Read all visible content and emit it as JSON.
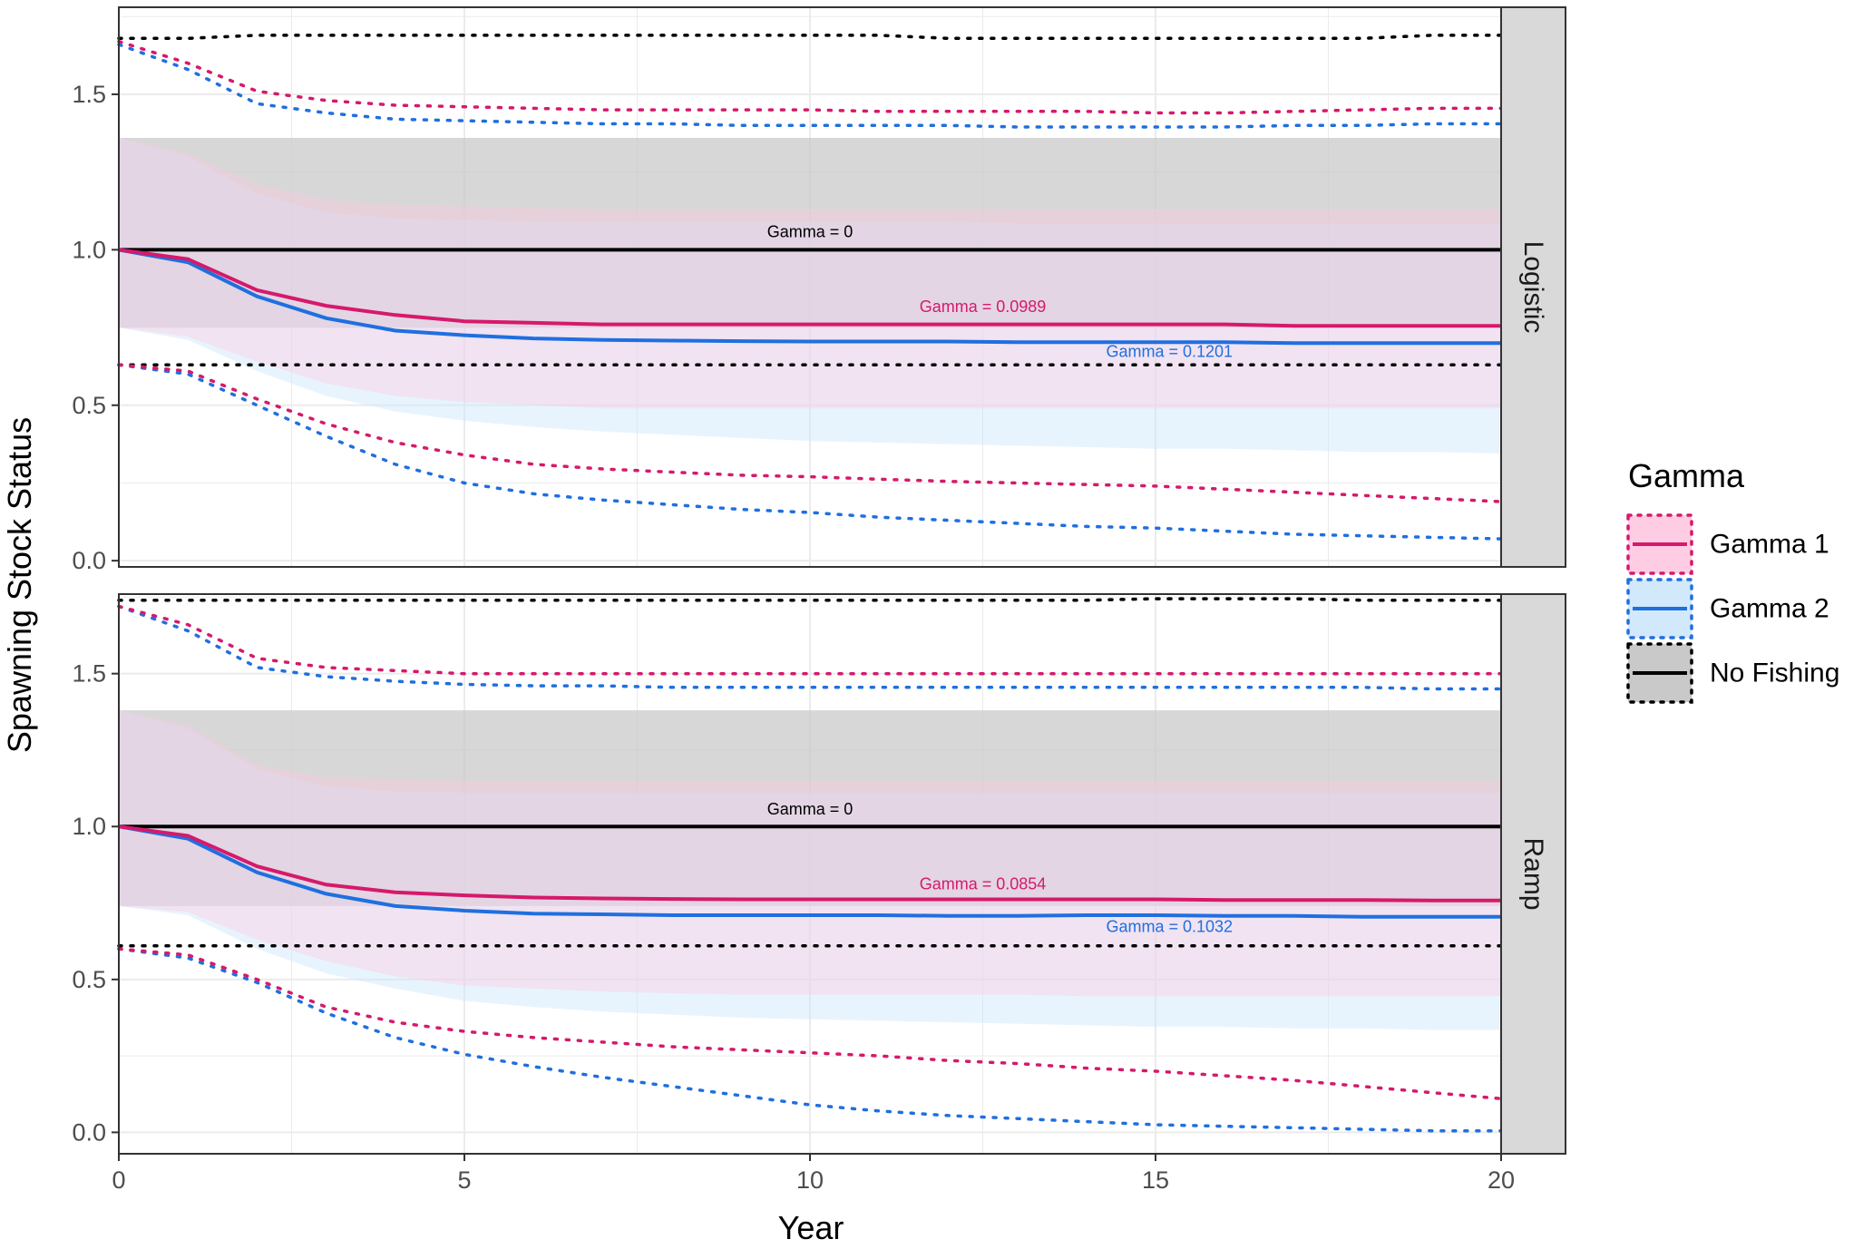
{
  "chart_data": {
    "type": "line",
    "title": "",
    "xlabel": "Year",
    "ylabel": "Spawning Stock Status",
    "xlim": [
      0,
      20
    ],
    "x_ticks": [
      0,
      5,
      10,
      15,
      20
    ],
    "y_ticks": [
      0.0,
      0.5,
      1.0,
      1.5
    ],
    "y_tick_labels": [
      "0.0",
      "0.5",
      "1.0",
      "1.5"
    ],
    "x_tick_labels": [
      "0",
      "5",
      "10",
      "15",
      "20"
    ],
    "grid": true,
    "x": [
      0,
      1,
      2,
      3,
      4,
      5,
      6,
      7,
      8,
      9,
      10,
      11,
      12,
      13,
      14,
      15,
      16,
      17,
      18,
      19,
      20
    ],
    "legend": {
      "title": "Gamma",
      "position": "right",
      "entries": [
        {
          "key": "g1",
          "label": "Gamma 1",
          "color": "#d6196b",
          "fill": "#ffc8e0"
        },
        {
          "key": "g2",
          "label": "Gamma 2",
          "color": "#1f6fe0",
          "fill": "#cde6fb"
        },
        {
          "key": "nf",
          "label": "No Fishing",
          "color": "#000000",
          "fill": "#c9c9c9"
        }
      ]
    },
    "panels": [
      {
        "strip": "Logistic",
        "ylim": [
          -0.02,
          1.78
        ],
        "series": [
          {
            "key": "nf",
            "name": "No Fishing",
            "median": [
              1.0,
              1.0,
              1.0,
              1.0,
              1.0,
              1.0,
              1.0,
              1.0,
              1.0,
              1.0,
              1.0,
              1.0,
              1.0,
              1.0,
              1.0,
              1.0,
              1.0,
              1.0,
              1.0,
              1.0,
              1.0
            ],
            "band_lo": [
              0.75,
              0.75,
              0.75,
              0.75,
              0.75,
              0.75,
              0.75,
              0.75,
              0.75,
              0.75,
              0.75,
              0.75,
              0.75,
              0.75,
              0.75,
              0.75,
              0.75,
              0.75,
              0.75,
              0.75,
              0.75
            ],
            "band_hi": [
              1.36,
              1.36,
              1.36,
              1.36,
              1.36,
              1.36,
              1.36,
              1.36,
              1.36,
              1.36,
              1.36,
              1.36,
              1.36,
              1.36,
              1.36,
              1.36,
              1.36,
              1.36,
              1.36,
              1.36,
              1.36
            ],
            "outer_lo": [
              0.63,
              0.63,
              0.63,
              0.63,
              0.63,
              0.63,
              0.63,
              0.63,
              0.63,
              0.63,
              0.63,
              0.63,
              0.63,
              0.63,
              0.63,
              0.63,
              0.63,
              0.63,
              0.63,
              0.63,
              0.63
            ],
            "outer_hi": [
              1.68,
              1.68,
              1.69,
              1.69,
              1.69,
              1.69,
              1.69,
              1.69,
              1.69,
              1.69,
              1.69,
              1.69,
              1.68,
              1.68,
              1.68,
              1.68,
              1.68,
              1.68,
              1.68,
              1.69,
              1.69
            ]
          },
          {
            "key": "g1",
            "name": "Gamma 1",
            "median": [
              1.0,
              0.97,
              0.87,
              0.82,
              0.79,
              0.77,
              0.765,
              0.76,
              0.76,
              0.76,
              0.76,
              0.76,
              0.76,
              0.76,
              0.76,
              0.76,
              0.76,
              0.755,
              0.755,
              0.755,
              0.755
            ],
            "band_lo": [
              0.75,
              0.72,
              0.64,
              0.57,
              0.53,
              0.51,
              0.5,
              0.49,
              0.49,
              0.49,
              0.49,
              0.49,
              0.49,
              0.49,
              0.49,
              0.49,
              0.49,
              0.49,
              0.49,
              0.49,
              0.49
            ],
            "band_hi": [
              1.36,
              1.31,
              1.21,
              1.16,
              1.145,
              1.14,
              1.135,
              1.13,
              1.13,
              1.13,
              1.13,
              1.13,
              1.13,
              1.13,
              1.13,
              1.13,
              1.13,
              1.13,
              1.13,
              1.13,
              1.13
            ],
            "outer_lo": [
              0.63,
              0.61,
              0.52,
              0.44,
              0.38,
              0.34,
              0.31,
              0.295,
              0.285,
              0.275,
              0.27,
              0.262,
              0.255,
              0.25,
              0.245,
              0.24,
              0.23,
              0.22,
              0.21,
              0.2,
              0.19
            ],
            "outer_hi": [
              1.67,
              1.6,
              1.51,
              1.48,
              1.465,
              1.46,
              1.455,
              1.45,
              1.45,
              1.45,
              1.45,
              1.445,
              1.445,
              1.445,
              1.445,
              1.44,
              1.44,
              1.445,
              1.45,
              1.455,
              1.455
            ]
          },
          {
            "key": "g2",
            "name": "Gamma 2",
            "median": [
              1.0,
              0.96,
              0.85,
              0.78,
              0.74,
              0.725,
              0.715,
              0.71,
              0.708,
              0.706,
              0.705,
              0.705,
              0.705,
              0.703,
              0.703,
              0.703,
              0.703,
              0.7,
              0.7,
              0.7,
              0.7
            ],
            "band_lo": [
              0.75,
              0.71,
              0.61,
              0.53,
              0.48,
              0.45,
              0.43,
              0.415,
              0.405,
              0.395,
              0.385,
              0.38,
              0.375,
              0.37,
              0.365,
              0.36,
              0.36,
              0.355,
              0.35,
              0.35,
              0.345
            ],
            "band_hi": [
              1.36,
              1.3,
              1.18,
              1.12,
              1.1,
              1.095,
              1.09,
              1.09,
              1.09,
              1.09,
              1.09,
              1.09,
              1.09,
              1.085,
              1.085,
              1.085,
              1.085,
              1.085,
              1.085,
              1.085,
              1.085
            ],
            "outer_lo": [
              0.63,
              0.6,
              0.5,
              0.4,
              0.31,
              0.25,
              0.215,
              0.195,
              0.18,
              0.165,
              0.155,
              0.14,
              0.13,
              0.12,
              0.11,
              0.105,
              0.095,
              0.085,
              0.08,
              0.075,
              0.07
            ],
            "outer_hi": [
              1.66,
              1.58,
              1.47,
              1.44,
              1.42,
              1.415,
              1.41,
              1.405,
              1.405,
              1.4,
              1.4,
              1.4,
              1.4,
              1.395,
              1.395,
              1.395,
              1.395,
              1.4,
              1.4,
              1.405,
              1.405
            ]
          }
        ],
        "annotations": [
          {
            "key": "nf",
            "text": "Gamma = 0",
            "x": 10.0,
            "y": 1.04
          },
          {
            "key": "g1",
            "text": "Gamma = 0.0989",
            "x": 12.5,
            "y": 0.8
          },
          {
            "key": "g2",
            "text": "Gamma = 0.1201",
            "x": 15.2,
            "y": 0.655
          }
        ]
      },
      {
        "strip": "Ramp",
        "ylim": [
          -0.07,
          1.76
        ],
        "series": [
          {
            "key": "nf",
            "name": "No Fishing",
            "median": [
              1.0,
              1.0,
              1.0,
              1.0,
              1.0,
              1.0,
              1.0,
              1.0,
              1.0,
              1.0,
              1.0,
              1.0,
              1.0,
              1.0,
              1.0,
              1.0,
              1.0,
              1.0,
              1.0,
              1.0,
              1.0
            ],
            "band_lo": [
              0.74,
              0.74,
              0.74,
              0.74,
              0.74,
              0.74,
              0.74,
              0.74,
              0.74,
              0.74,
              0.74,
              0.74,
              0.74,
              0.74,
              0.74,
              0.74,
              0.74,
              0.74,
              0.74,
              0.74,
              0.74
            ],
            "band_hi": [
              1.38,
              1.38,
              1.38,
              1.38,
              1.38,
              1.38,
              1.38,
              1.38,
              1.38,
              1.38,
              1.38,
              1.38,
              1.38,
              1.38,
              1.38,
              1.38,
              1.38,
              1.38,
              1.38,
              1.38,
              1.38
            ],
            "outer_lo": [
              0.61,
              0.61,
              0.61,
              0.61,
              0.61,
              0.61,
              0.61,
              0.61,
              0.61,
              0.61,
              0.61,
              0.61,
              0.61,
              0.61,
              0.61,
              0.61,
              0.61,
              0.61,
              0.61,
              0.61,
              0.61
            ],
            "outer_hi": [
              1.74,
              1.74,
              1.74,
              1.74,
              1.74,
              1.74,
              1.74,
              1.74,
              1.74,
              1.74,
              1.74,
              1.74,
              1.74,
              1.74,
              1.74,
              1.745,
              1.745,
              1.745,
              1.74,
              1.74,
              1.74
            ]
          },
          {
            "key": "g1",
            "name": "Gamma 1",
            "median": [
              1.0,
              0.97,
              0.87,
              0.81,
              0.785,
              0.775,
              0.768,
              0.765,
              0.763,
              0.762,
              0.762,
              0.762,
              0.762,
              0.762,
              0.762,
              0.762,
              0.76,
              0.76,
              0.76,
              0.758,
              0.758
            ],
            "band_lo": [
              0.74,
              0.72,
              0.63,
              0.56,
              0.51,
              0.48,
              0.47,
              0.46,
              0.455,
              0.45,
              0.45,
              0.45,
              0.45,
              0.45,
              0.445,
              0.445,
              0.445,
              0.445,
              0.445,
              0.445,
              0.445
            ],
            "band_hi": [
              1.38,
              1.33,
              1.2,
              1.16,
              1.155,
              1.15,
              1.15,
              1.15,
              1.15,
              1.15,
              1.15,
              1.15,
              1.15,
              1.15,
              1.15,
              1.15,
              1.15,
              1.15,
              1.15,
              1.15,
              1.15
            ],
            "outer_lo": [
              0.6,
              0.58,
              0.5,
              0.41,
              0.36,
              0.33,
              0.31,
              0.295,
              0.28,
              0.27,
              0.26,
              0.25,
              0.235,
              0.225,
              0.21,
              0.2,
              0.185,
              0.17,
              0.15,
              0.13,
              0.11
            ],
            "outer_hi": [
              1.72,
              1.66,
              1.55,
              1.52,
              1.51,
              1.5,
              1.5,
              1.5,
              1.5,
              1.5,
              1.5,
              1.5,
              1.5,
              1.5,
              1.5,
              1.5,
              1.5,
              1.5,
              1.5,
              1.5,
              1.5
            ]
          },
          {
            "key": "g2",
            "name": "Gamma 2",
            "median": [
              1.0,
              0.96,
              0.85,
              0.78,
              0.74,
              0.725,
              0.715,
              0.713,
              0.71,
              0.71,
              0.71,
              0.71,
              0.708,
              0.708,
              0.71,
              0.71,
              0.708,
              0.708,
              0.705,
              0.705,
              0.705
            ],
            "band_lo": [
              0.74,
              0.71,
              0.6,
              0.52,
              0.47,
              0.43,
              0.41,
              0.395,
              0.385,
              0.375,
              0.37,
              0.365,
              0.36,
              0.355,
              0.35,
              0.345,
              0.345,
              0.34,
              0.34,
              0.335,
              0.335
            ],
            "band_hi": [
              1.38,
              1.32,
              1.19,
              1.13,
              1.115,
              1.11,
              1.11,
              1.11,
              1.11,
              1.11,
              1.11,
              1.11,
              1.11,
              1.11,
              1.11,
              1.11,
              1.11,
              1.11,
              1.11,
              1.11,
              1.11
            ],
            "outer_lo": [
              0.6,
              0.57,
              0.49,
              0.39,
              0.31,
              0.255,
              0.215,
              0.18,
              0.15,
              0.12,
              0.09,
              0.07,
              0.055,
              0.045,
              0.035,
              0.025,
              0.02,
              0.015,
              0.01,
              0.005,
              0.005
            ],
            "outer_hi": [
              1.72,
              1.64,
              1.52,
              1.49,
              1.475,
              1.465,
              1.46,
              1.46,
              1.455,
              1.455,
              1.455,
              1.455,
              1.455,
              1.455,
              1.455,
              1.455,
              1.455,
              1.455,
              1.455,
              1.45,
              1.45
            ]
          }
        ],
        "annotations": [
          {
            "key": "nf",
            "text": "Gamma = 0",
            "x": 10.0,
            "y": 1.04
          },
          {
            "key": "g1",
            "text": "Gamma = 0.0854",
            "x": 12.5,
            "y": 0.795
          },
          {
            "key": "g2",
            "text": "Gamma = 0.1032",
            "x": 15.2,
            "y": 0.655
          }
        ]
      }
    ]
  }
}
